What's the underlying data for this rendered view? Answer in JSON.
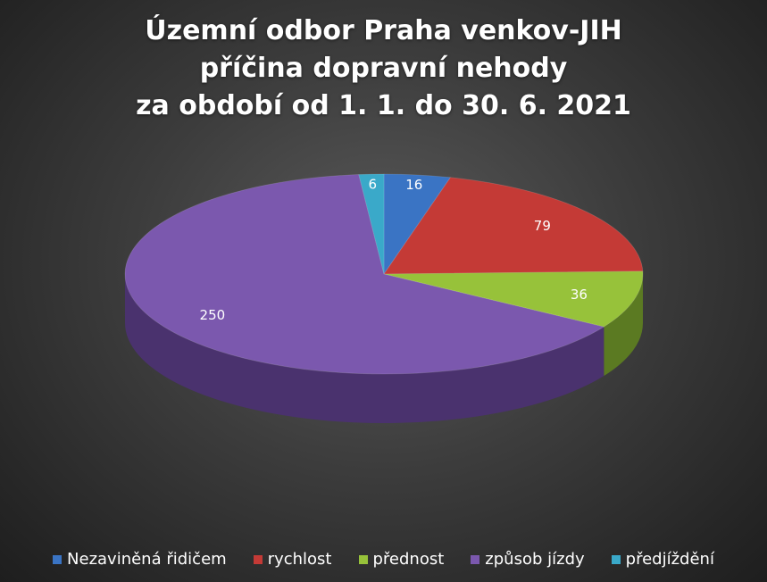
{
  "chart_data": {
    "type": "pie",
    "title_lines": [
      "Územní odbor Praha venkov-JIH",
      "příčina dopravní nehody",
      "za období od 1. 1. do 30. 6. 2021"
    ],
    "categories": [
      "Nezaviněná řidičem",
      "rychlost",
      "přednost",
      "způsob jízdy",
      "předjíždění"
    ],
    "values": [
      16,
      79,
      36,
      250,
      6
    ],
    "colors": [
      "#3a74c4",
      "#c43a36",
      "#97c23a",
      "#7b58ae",
      "#3aa9c9"
    ],
    "side_colors": [
      "#24497c",
      "#7b2220",
      "#5b7a22",
      "#4a326e",
      "#226b80"
    ],
    "legend_position": "bottom",
    "data_labels": true
  }
}
